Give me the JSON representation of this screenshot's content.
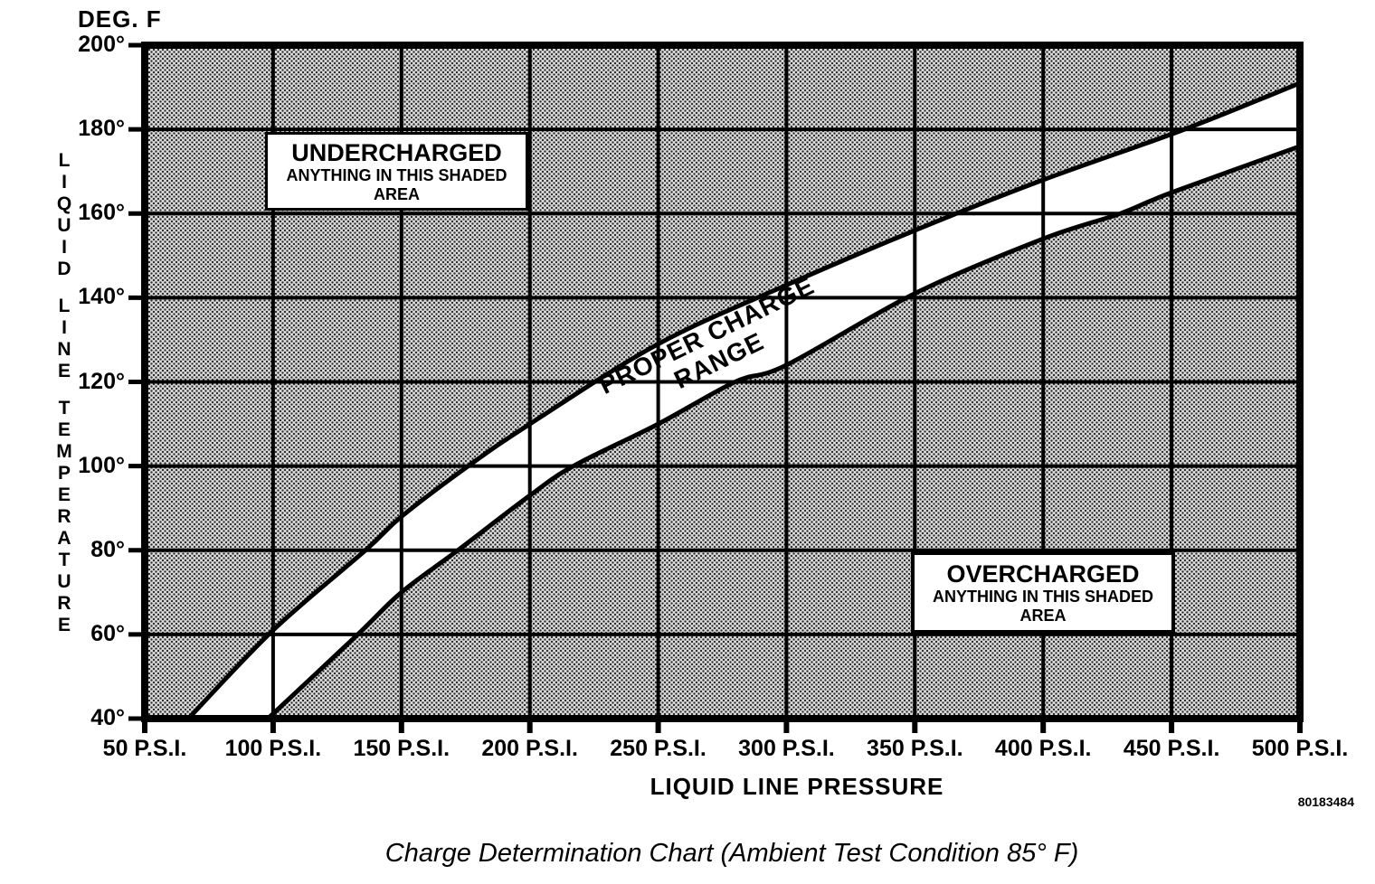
{
  "figure": {
    "deg_f_label": "DEG. F",
    "y_axis_title": "LIQUID LINE TEMPERATURE",
    "x_axis_title": "LIQUID LINE PRESSURE",
    "doc_number": "80183484",
    "caption": "Charge Determination Chart (Ambient Test Condition 85° F)"
  },
  "annotations": {
    "undercharged": {
      "title": "UNDERCHARGED",
      "line2": "ANYTHING IN THIS SHADED",
      "line3": "AREA"
    },
    "overcharged": {
      "title": "OVERCHARGED",
      "line2": "ANYTHING IN THIS SHADED",
      "line3": "AREA"
    },
    "band_label_line1": "PROPER CHARGE",
    "band_label_line2": "RANGE"
  },
  "chart_data": {
    "type": "area",
    "title": "Charge Determination Chart (Ambient Test Condition 85° F)",
    "xlabel": "LIQUID LINE PRESSURE",
    "ylabel": "LIQUID LINE TEMPERATURE (DEG. F)",
    "xlim": [
      50,
      500
    ],
    "ylim": [
      40,
      200
    ],
    "x_tick_values": [
      50,
      100,
      150,
      200,
      250,
      300,
      350,
      400,
      450,
      500
    ],
    "x_tick_labels": [
      "50 P.S.I.",
      "100 P.S.I.",
      "150 P.S.I.",
      "200 P.S.I.",
      "250 P.S.I.",
      "300 P.S.I.",
      "350 P.S.I.",
      "400 P.S.I.",
      "450 P.S.I.",
      "500 P.S.I."
    ],
    "y_tick_values": [
      200,
      180,
      160,
      140,
      120,
      100,
      80,
      60,
      40
    ],
    "y_tick_labels": [
      "200°",
      "180°",
      "160°",
      "140°",
      "120°",
      "100°",
      "80°",
      "60°",
      "40°"
    ],
    "grid": true,
    "legend": "none",
    "series": [
      {
        "name": "upper-curve-undercharged-boundary",
        "points_psi_degF": [
          [
            67,
            40
          ],
          [
            100,
            61
          ],
          [
            136,
            80
          ],
          [
            150,
            88
          ],
          [
            176,
            100
          ],
          [
            200,
            110
          ],
          [
            250,
            129
          ],
          [
            300,
            143
          ],
          [
            350,
            156
          ],
          [
            400,
            168
          ],
          [
            455,
            180
          ],
          [
            500,
            191
          ]
        ]
      },
      {
        "name": "lower-curve-overcharged-boundary",
        "points_psi_degF": [
          [
            98,
            40
          ],
          [
            133,
            60
          ],
          [
            150,
            70
          ],
          [
            172,
            80
          ],
          [
            200,
            93
          ],
          [
            217,
            100
          ],
          [
            250,
            110
          ],
          [
            280,
            120
          ],
          [
            300,
            124
          ],
          [
            350,
            141
          ],
          [
            400,
            154
          ],
          [
            430,
            160
          ],
          [
            450,
            165
          ],
          [
            500,
            176
          ]
        ]
      }
    ],
    "regions": {
      "above_upper_curve": "UNDERCHARGED — ANYTHING IN THIS SHADED AREA",
      "between_curves": "PROPER CHARGE RANGE (white band)",
      "below_lower_curve": "OVERCHARGED — ANYTHING IN THIS SHADED AREA"
    },
    "colors": {
      "line": "#000000",
      "shaded_area_bg": "#dbdbdb",
      "shaded_area_dots": "#2e2e2e",
      "proper_charge_band": "#ffffff"
    }
  }
}
